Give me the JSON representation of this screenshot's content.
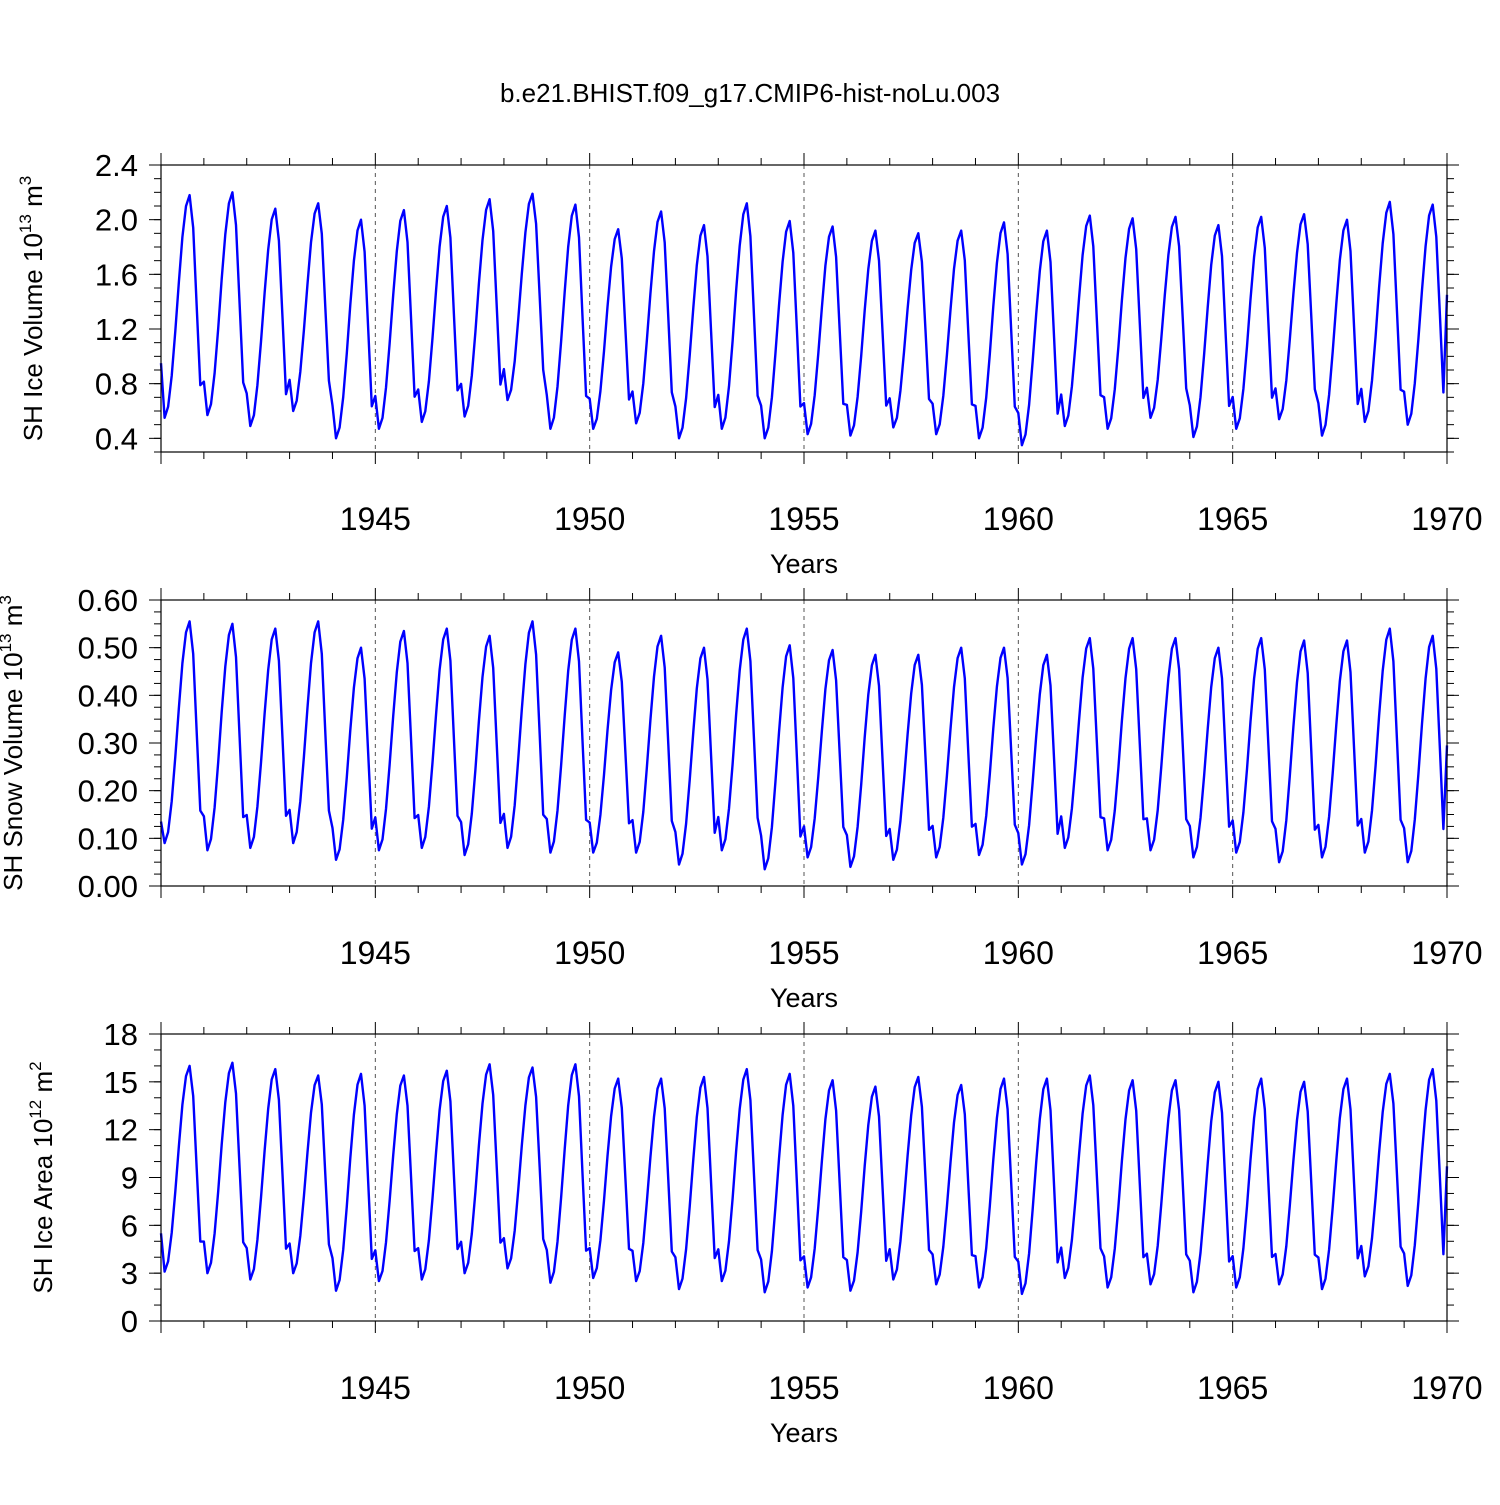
{
  "title": "b.e21.BHIST.f09_g17.CMIP6-hist-noLu.003",
  "colors": {
    "series": "#0000ff",
    "axis": "#000000"
  },
  "chart_data": [
    {
      "type": "line",
      "xlabel": "Years",
      "ylabel": {
        "main": "SH Ice Volume 10",
        "sup": "13",
        "unit": " m",
        "unit_sup": "3"
      },
      "xlim": [
        1940,
        1970
      ],
      "ylim": [
        0.3,
        2.4
      ],
      "x_ticks": [
        "1945",
        "1950",
        "1955",
        "1960",
        "1965",
        "1970"
      ],
      "y_ticks": [
        "0.4",
        "0.8",
        "1.2",
        "1.6",
        "2.0",
        "2.4"
      ],
      "y_tick_values": [
        0.4,
        0.8,
        1.2,
        1.6,
        2.0,
        2.4
      ],
      "y_minor_step": 0.1,
      "grid": "dashed vertical lines at 1945, 1950, 1955, 1960, 1965",
      "series": [
        {
          "x_start": 1940.0,
          "x_step": 0.08333,
          "annual_min": [
            0.55,
            0.57,
            0.49,
            0.6,
            0.4,
            0.47,
            0.52,
            0.56,
            0.68,
            0.47,
            0.47,
            0.51,
            0.4,
            0.47,
            0.4,
            0.43,
            0.42,
            0.48,
            0.43,
            0.4,
            0.35,
            0.49,
            0.47,
            0.55,
            0.41,
            0.47,
            0.54,
            0.42,
            0.52,
            0.5
          ],
          "annual_max": [
            2.18,
            2.2,
            2.08,
            2.12,
            2.0,
            2.07,
            2.1,
            2.15,
            2.19,
            2.11,
            1.93,
            2.06,
            1.96,
            2.12,
            1.99,
            1.95,
            1.92,
            1.9,
            1.92,
            1.98,
            1.92,
            2.03,
            2.01,
            2.02,
            1.96,
            2.02,
            2.04,
            2.0,
            2.13,
            2.11
          ],
          "first_value": 0.95,
          "last_value": 1.45
        }
      ]
    },
    {
      "type": "line",
      "xlabel": "Years",
      "ylabel": {
        "main": "SH Snow Volume 10",
        "sup": "13",
        "unit": " m",
        "unit_sup": "3"
      },
      "xlim": [
        1940,
        1970
      ],
      "ylim": [
        0.0,
        0.6
      ],
      "x_ticks": [
        "1945",
        "1950",
        "1955",
        "1960",
        "1965",
        "1970"
      ],
      "y_ticks": [
        "0.00",
        "0.10",
        "0.20",
        "0.30",
        "0.40",
        "0.50",
        "0.60"
      ],
      "y_tick_values": [
        0.0,
        0.1,
        0.2,
        0.3,
        0.4,
        0.5,
        0.6
      ],
      "y_minor_step": 0.025,
      "grid": "dashed vertical lines at 1945, 1950, 1955, 1960, 1965",
      "series": [
        {
          "x_start": 1940.0,
          "x_step": 0.08333,
          "annual_min": [
            0.09,
            0.075,
            0.08,
            0.09,
            0.055,
            0.075,
            0.08,
            0.065,
            0.08,
            0.07,
            0.07,
            0.07,
            0.045,
            0.075,
            0.035,
            0.06,
            0.04,
            0.055,
            0.06,
            0.065,
            0.045,
            0.08,
            0.075,
            0.075,
            0.06,
            0.07,
            0.05,
            0.06,
            0.07,
            0.05
          ],
          "annual_max": [
            0.555,
            0.55,
            0.54,
            0.555,
            0.5,
            0.535,
            0.54,
            0.525,
            0.555,
            0.54,
            0.49,
            0.525,
            0.5,
            0.54,
            0.505,
            0.495,
            0.485,
            0.485,
            0.5,
            0.5,
            0.485,
            0.52,
            0.52,
            0.52,
            0.5,
            0.52,
            0.515,
            0.515,
            0.54,
            0.525
          ],
          "first_value": 0.135,
          "last_value": 0.295
        }
      ]
    },
    {
      "type": "line",
      "xlabel": "Years",
      "ylabel": {
        "main": "SH Ice Area 10",
        "sup": "12",
        "unit": " m",
        "unit_sup": "2"
      },
      "xlim": [
        1940,
        1970
      ],
      "ylim": [
        0,
        18
      ],
      "x_ticks": [
        "1945",
        "1950",
        "1955",
        "1960",
        "1965",
        "1970"
      ],
      "y_ticks": [
        "0",
        "3",
        "6",
        "9",
        "12",
        "15",
        "18"
      ],
      "y_tick_values": [
        0,
        3,
        6,
        9,
        12,
        15,
        18
      ],
      "y_minor_step": 1,
      "grid": "dashed vertical lines at 1945, 1950, 1955, 1960, 1965",
      "series": [
        {
          "x_start": 1940.0,
          "x_step": 0.08333,
          "annual_min": [
            3.1,
            3.0,
            2.6,
            3.0,
            1.9,
            2.5,
            2.6,
            3.0,
            3.3,
            2.4,
            2.7,
            2.5,
            2.0,
            2.5,
            1.8,
            2.1,
            1.9,
            2.6,
            2.3,
            2.1,
            1.7,
            2.7,
            2.1,
            2.3,
            1.8,
            2.1,
            2.3,
            2.0,
            2.8,
            2.2
          ],
          "annual_max": [
            16.0,
            16.2,
            15.8,
            15.4,
            15.5,
            15.4,
            15.7,
            16.1,
            15.9,
            16.1,
            15.2,
            15.2,
            15.3,
            15.8,
            15.5,
            15.1,
            14.7,
            15.3,
            14.8,
            15.2,
            15.2,
            15.4,
            15.1,
            15.1,
            15.0,
            15.2,
            15.0,
            15.2,
            15.5,
            15.8
          ],
          "first_value": 5.5,
          "last_value": 9.7
        }
      ]
    }
  ]
}
